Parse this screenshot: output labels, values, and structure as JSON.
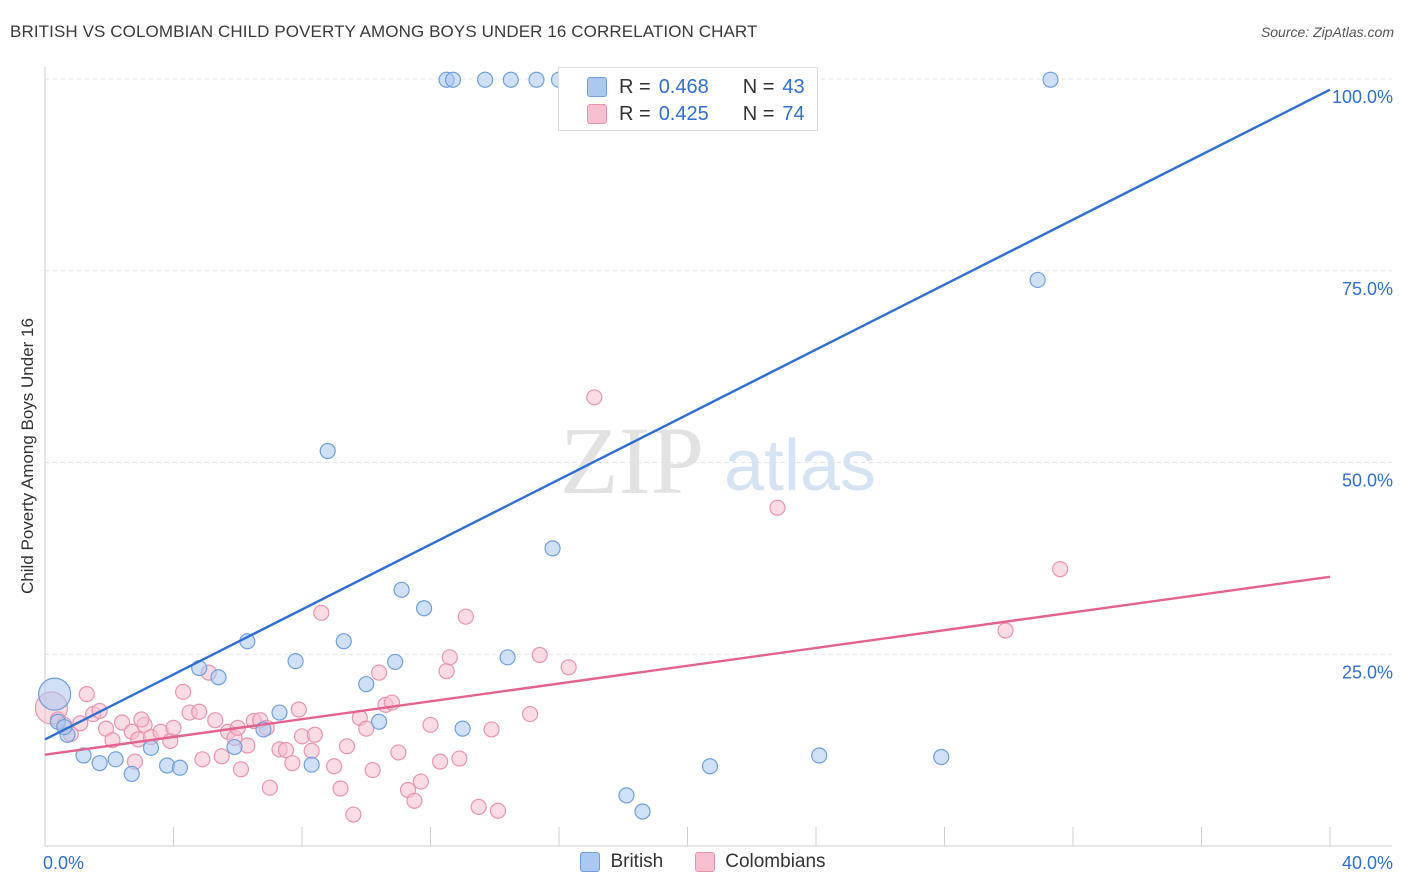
{
  "header": {
    "title": "BRITISH VS COLOMBIAN CHILD POVERTY AMONG BOYS UNDER 16 CORRELATION CHART",
    "source": "Source: ZipAtlas.com"
  },
  "colors": {
    "british_fill": "#aac8f0",
    "british_stroke": "#6f9fdc",
    "british_line": "#2f6fd1",
    "colombian_fill": "#f7bfcf",
    "colombian_stroke": "#e994ae",
    "colombian_line": "#e3628f",
    "tick_label": "#2f6fd1",
    "grid": "#e3e3e3"
  },
  "legend": {
    "british": {
      "r_label": "R =",
      "r_value": "0.468",
      "n_label": "N =",
      "n_value": "43"
    },
    "colombians": {
      "r_label": "R =",
      "r_value": "0.425",
      "n_label": "N =",
      "n_value": "74"
    }
  },
  "bottom_legend": {
    "british": "British",
    "colombians": "Colombians"
  },
  "watermark": {
    "zip": "ZIP",
    "atlas": "atlas"
  },
  "chart_data": {
    "type": "scatter",
    "title": "BRITISH VS COLOMBIAN CHILD POVERTY AMONG BOYS UNDER 16 CORRELATION CHART",
    "xlabel": "",
    "ylabel": "Child Poverty Among Boys Under 16",
    "xlim": [
      0,
      40
    ],
    "ylim": [
      0,
      100
    ],
    "x_tick_labels": [
      {
        "value": 0,
        "label": "0.0%"
      },
      {
        "value": 40,
        "label": "40.0%"
      }
    ],
    "y_tick_labels": [
      {
        "value": 25,
        "label": "25.0%"
      },
      {
        "value": 50,
        "label": "50.0%"
      },
      {
        "value": 75,
        "label": "75.0%"
      },
      {
        "value": 100,
        "label": "100.0%"
      }
    ],
    "grid": true,
    "legend_position": "top-center",
    "series": [
      {
        "name": "British",
        "r": 0.468,
        "n": 43,
        "trend": {
          "x": [
            0,
            40
          ],
          "y": [
            13.9,
            98.6
          ]
        },
        "points": [
          {
            "x": 0.3,
            "y": 19.8,
            "big": true
          },
          {
            "x": 0.7,
            "y": 14.5
          },
          {
            "x": 0.4,
            "y": 16.2
          },
          {
            "x": 0.6,
            "y": 15.5
          },
          {
            "x": 1.2,
            "y": 11.8
          },
          {
            "x": 1.7,
            "y": 10.8
          },
          {
            "x": 2.2,
            "y": 11.3
          },
          {
            "x": 2.7,
            "y": 9.4
          },
          {
            "x": 3.3,
            "y": 12.8
          },
          {
            "x": 3.8,
            "y": 10.5
          },
          {
            "x": 4.2,
            "y": 10.2
          },
          {
            "x": 4.8,
            "y": 23.2
          },
          {
            "x": 5.4,
            "y": 22.0
          },
          {
            "x": 5.9,
            "y": 12.9
          },
          {
            "x": 6.3,
            "y": 26.7
          },
          {
            "x": 6.8,
            "y": 15.2
          },
          {
            "x": 7.3,
            "y": 17.4
          },
          {
            "x": 7.8,
            "y": 24.1
          },
          {
            "x": 8.3,
            "y": 10.6
          },
          {
            "x": 8.8,
            "y": 51.5
          },
          {
            "x": 9.3,
            "y": 26.7
          },
          {
            "x": 10.0,
            "y": 21.1
          },
          {
            "x": 10.4,
            "y": 16.2
          },
          {
            "x": 10.9,
            "y": 24.0
          },
          {
            "x": 11.1,
            "y": 33.4
          },
          {
            "x": 11.8,
            "y": 31.0
          },
          {
            "x": 12.5,
            "y": 99.9
          },
          {
            "x": 12.7,
            "y": 99.9
          },
          {
            "x": 13.7,
            "y": 99.9
          },
          {
            "x": 14.5,
            "y": 99.9
          },
          {
            "x": 15.3,
            "y": 99.9
          },
          {
            "x": 16.0,
            "y": 99.9
          },
          {
            "x": 17.2,
            "y": 99.9
          },
          {
            "x": 13.0,
            "y": 15.3
          },
          {
            "x": 14.4,
            "y": 24.6
          },
          {
            "x": 15.8,
            "y": 38.8
          },
          {
            "x": 18.1,
            "y": 6.6
          },
          {
            "x": 18.6,
            "y": 4.5
          },
          {
            "x": 20.7,
            "y": 10.4
          },
          {
            "x": 24.1,
            "y": 11.8
          },
          {
            "x": 27.9,
            "y": 11.6
          },
          {
            "x": 30.9,
            "y": 73.8
          },
          {
            "x": 31.3,
            "y": 99.9
          }
        ]
      },
      {
        "name": "Colombians",
        "r": 0.425,
        "n": 74,
        "trend": {
          "x": [
            0,
            40
          ],
          "y": [
            11.9,
            35.1
          ]
        },
        "points": [
          {
            "x": 0.2,
            "y": 18.0,
            "big": true
          },
          {
            "x": 0.4,
            "y": 16.5
          },
          {
            "x": 0.6,
            "y": 15.8
          },
          {
            "x": 0.8,
            "y": 14.6
          },
          {
            "x": 1.1,
            "y": 16.0
          },
          {
            "x": 1.3,
            "y": 19.8
          },
          {
            "x": 1.5,
            "y": 17.2
          },
          {
            "x": 1.7,
            "y": 17.6
          },
          {
            "x": 1.9,
            "y": 15.3
          },
          {
            "x": 2.1,
            "y": 13.8
          },
          {
            "x": 2.4,
            "y": 16.1
          },
          {
            "x": 2.7,
            "y": 14.9
          },
          {
            "x": 2.9,
            "y": 13.9
          },
          {
            "x": 3.1,
            "y": 15.8
          },
          {
            "x": 3.3,
            "y": 14.2
          },
          {
            "x": 3.6,
            "y": 14.9
          },
          {
            "x": 3.9,
            "y": 13.7
          },
          {
            "x": 4.0,
            "y": 15.4
          },
          {
            "x": 4.3,
            "y": 20.1
          },
          {
            "x": 4.5,
            "y": 17.4
          },
          {
            "x": 4.8,
            "y": 17.5
          },
          {
            "x": 4.9,
            "y": 11.3
          },
          {
            "x": 5.1,
            "y": 22.6
          },
          {
            "x": 5.3,
            "y": 16.4
          },
          {
            "x": 5.5,
            "y": 11.7
          },
          {
            "x": 5.7,
            "y": 14.9
          },
          {
            "x": 5.9,
            "y": 14.1
          },
          {
            "x": 6.1,
            "y": 10.0
          },
          {
            "x": 6.3,
            "y": 13.1
          },
          {
            "x": 6.5,
            "y": 16.3
          },
          {
            "x": 6.7,
            "y": 16.4
          },
          {
            "x": 6.9,
            "y": 15.4
          },
          {
            "x": 7.0,
            "y": 7.6
          },
          {
            "x": 7.3,
            "y": 12.6
          },
          {
            "x": 7.5,
            "y": 12.5
          },
          {
            "x": 7.7,
            "y": 10.8
          },
          {
            "x": 7.9,
            "y": 17.8
          },
          {
            "x": 8.0,
            "y": 14.3
          },
          {
            "x": 8.3,
            "y": 12.4
          },
          {
            "x": 8.4,
            "y": 14.5
          },
          {
            "x": 8.6,
            "y": 30.4
          },
          {
            "x": 9.0,
            "y": 10.4
          },
          {
            "x": 9.2,
            "y": 7.5
          },
          {
            "x": 9.4,
            "y": 13.0
          },
          {
            "x": 9.6,
            "y": 4.1
          },
          {
            "x": 9.8,
            "y": 16.7
          },
          {
            "x": 10.0,
            "y": 15.3
          },
          {
            "x": 10.2,
            "y": 9.9
          },
          {
            "x": 10.4,
            "y": 22.6
          },
          {
            "x": 10.6,
            "y": 18.4
          },
          {
            "x": 10.8,
            "y": 18.7
          },
          {
            "x": 11.0,
            "y": 12.2
          },
          {
            "x": 11.3,
            "y": 7.3
          },
          {
            "x": 11.5,
            "y": 5.9
          },
          {
            "x": 11.7,
            "y": 8.4
          },
          {
            "x": 12.0,
            "y": 15.8
          },
          {
            "x": 12.3,
            "y": 11.0
          },
          {
            "x": 12.5,
            "y": 22.8
          },
          {
            "x": 12.6,
            "y": 24.6
          },
          {
            "x": 12.9,
            "y": 11.4
          },
          {
            "x": 13.1,
            "y": 29.9
          },
          {
            "x": 13.5,
            "y": 5.1
          },
          {
            "x": 14.1,
            "y": 4.6
          },
          {
            "x": 13.9,
            "y": 15.2
          },
          {
            "x": 15.1,
            "y": 17.2
          },
          {
            "x": 15.4,
            "y": 24.9
          },
          {
            "x": 16.3,
            "y": 23.3
          },
          {
            "x": 17.1,
            "y": 58.5
          },
          {
            "x": 22.8,
            "y": 44.1
          },
          {
            "x": 29.9,
            "y": 28.1
          },
          {
            "x": 31.6,
            "y": 36.1
          },
          {
            "x": 2.8,
            "y": 11.0
          },
          {
            "x": 6.0,
            "y": 15.4
          },
          {
            "x": 3.0,
            "y": 16.5
          }
        ]
      }
    ]
  }
}
